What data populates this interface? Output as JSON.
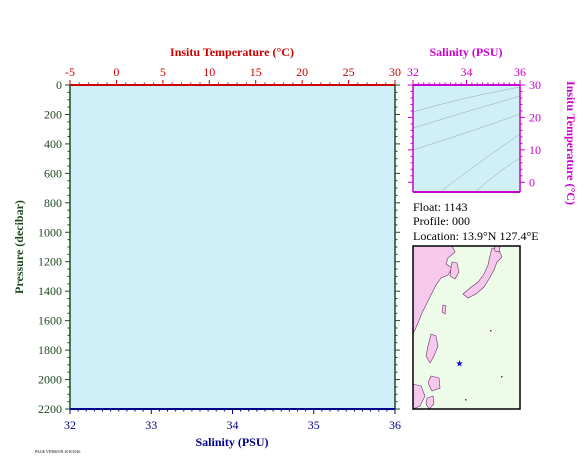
{
  "colors": {
    "panel_fill": "#d0eff8",
    "temperature": "#cc0000",
    "salinity_top": "#cc00cc",
    "pressure": "#1f4a1f",
    "salinity_bottom": "#00008b",
    "map_ocean": "#eefbe9",
    "map_land": "#f5c8ec",
    "float_marker": "#0000cc"
  },
  "chart_data": [
    {
      "type": "line",
      "panel": "main-profile",
      "title": "",
      "top_axis": {
        "label": "Insitu Temperature (°C)",
        "range": [
          -5,
          30
        ],
        "ticks": [
          "-5",
          "0",
          "5",
          "10",
          "15",
          "20",
          "25",
          "30"
        ]
      },
      "bottom_axis": {
        "label": "Salinity (PSU)",
        "range": [
          32,
          36
        ],
        "ticks": [
          "32",
          "33",
          "34",
          "35",
          "36"
        ]
      },
      "left_axis": {
        "label": "Pressure (decibar)",
        "range": [
          0,
          2200
        ],
        "inverted": true,
        "ticks": [
          "0",
          "200",
          "400",
          "600",
          "800",
          "1000",
          "1200",
          "1400",
          "1600",
          "1800",
          "2000",
          "2200"
        ]
      },
      "series": []
    },
    {
      "type": "scatter",
      "panel": "ts-diagram",
      "top_axis": {
        "label": "Salinity (PSU)",
        "range": [
          32,
          36
        ],
        "ticks": [
          "32",
          "34",
          "36"
        ]
      },
      "right_axis": {
        "label": "Insitu Temperature (°C)",
        "range": [
          -3,
          30
        ],
        "ticks": [
          "0",
          "10",
          "20",
          "30"
        ]
      },
      "series": [],
      "density_contours": "shown"
    }
  ],
  "info": {
    "float_line": "Float:  1143",
    "profile_line": "Profile:  000",
    "location_line": "Location:  13.9°N  127.4°E"
  },
  "map": {
    "lat_range": [
      0,
      50
    ],
    "lon_range": [
      110,
      150
    ],
    "float_position": {
      "lat": 13.9,
      "lon": 127.4
    }
  },
  "footer": {
    "stamp": "PAGE VERSION 20101026"
  }
}
